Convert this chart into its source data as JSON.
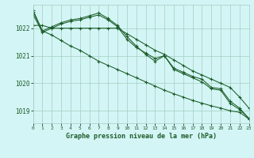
{
  "title": "Graphe pression niveau de la mer (hPa)",
  "background_color": "#d4f5f5",
  "grid_color": "#a0cfc0",
  "line_color": "#1a5c28",
  "xlim": [
    0,
    23
  ],
  "ylim": [
    1018.55,
    1022.85
  ],
  "yticks": [
    1019,
    1020,
    1021,
    1022
  ],
  "xticks": [
    0,
    1,
    2,
    3,
    4,
    5,
    6,
    7,
    8,
    9,
    10,
    11,
    12,
    13,
    14,
    15,
    16,
    17,
    18,
    19,
    20,
    21,
    22,
    23
  ],
  "series": [
    {
      "x": [
        0,
        1,
        2,
        3,
        4,
        5,
        6,
        7,
        8,
        9,
        10,
        11,
        12,
        13,
        14,
        15,
        16,
        17,
        18,
        19,
        20,
        21,
        22,
        23
      ],
      "y": [
        1022.1,
        1022.1,
        1022.0,
        1022.0,
        1022.0,
        1022.0,
        1022.0,
        1022.0,
        1022.0,
        1022.0,
        1021.8,
        1021.6,
        1021.4,
        1021.2,
        1021.05,
        1020.85,
        1020.65,
        1020.45,
        1020.3,
        1020.15,
        1020.0,
        1019.85,
        1019.5,
        1019.1
      ]
    },
    {
      "x": [
        0,
        1,
        2,
        3,
        4,
        5,
        6,
        7,
        8,
        9,
        10,
        11,
        12,
        13,
        14,
        15,
        16,
        17,
        18,
        19,
        20,
        21,
        22,
        23
      ],
      "y": [
        1022.6,
        1021.9,
        1021.75,
        1021.55,
        1021.35,
        1021.2,
        1021.0,
        1020.8,
        1020.65,
        1020.5,
        1020.35,
        1020.2,
        1020.05,
        1019.9,
        1019.75,
        1019.62,
        1019.5,
        1019.38,
        1019.28,
        1019.18,
        1019.1,
        1019.0,
        1018.95,
        1018.7
      ]
    },
    {
      "x": [
        0,
        1,
        2,
        3,
        4,
        5,
        6,
        7,
        8,
        9,
        10,
        11,
        12,
        13,
        14,
        15,
        16,
        17,
        18,
        19,
        20,
        21,
        22,
        23
      ],
      "y": [
        1022.65,
        1021.9,
        1022.05,
        1022.2,
        1022.3,
        1022.35,
        1022.45,
        1022.55,
        1022.35,
        1022.1,
        1021.7,
        1021.35,
        1021.05,
        1020.8,
        1021.0,
        1020.55,
        1020.4,
        1020.25,
        1020.15,
        1019.85,
        1019.8,
        1019.35,
        1019.1,
        1018.72
      ]
    },
    {
      "x": [
        0,
        1,
        2,
        3,
        4,
        5,
        6,
        7,
        8,
        9,
        10,
        11,
        12,
        13,
        14,
        15,
        16,
        17,
        18,
        19,
        20,
        21,
        22,
        23
      ],
      "y": [
        1022.5,
        1021.85,
        1022.0,
        1022.15,
        1022.25,
        1022.3,
        1022.4,
        1022.48,
        1022.3,
        1022.05,
        1021.6,
        1021.3,
        1021.1,
        1020.9,
        1021.0,
        1020.5,
        1020.35,
        1020.2,
        1020.05,
        1019.8,
        1019.75,
        1019.27,
        1019.05,
        1018.73
      ]
    }
  ]
}
